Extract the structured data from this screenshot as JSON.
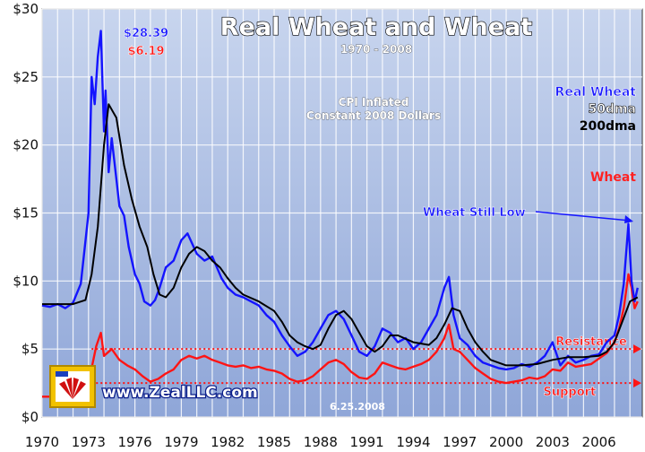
{
  "chart_data": {
    "type": "line",
    "title": "Real Wheat and Wheat",
    "subtitle": "1970 - 2008",
    "note_lines": [
      "CPI Inflated",
      "Constant 2008 Dollars"
    ],
    "ylim": [
      0,
      30
    ],
    "xlim": [
      1970,
      2008.8
    ],
    "y_ticks": [
      0,
      5,
      10,
      15,
      20,
      25,
      30
    ],
    "y_tick_labels": [
      "$0",
      "$5",
      "$10",
      "$15",
      "$20",
      "$25",
      "$30"
    ],
    "x_ticks": [
      1970,
      1973,
      1976,
      1979,
      1982,
      1985,
      1988,
      1991,
      1994,
      1997,
      2000,
      2003,
      2006
    ],
    "x_tick_labels": [
      "1970",
      "1973",
      "1976",
      "1979",
      "1982",
      "1985",
      "1988",
      "1991",
      "1994",
      "1997",
      "2000",
      "2003",
      "2006"
    ],
    "grid": true,
    "legend": {
      "position": "right",
      "entries": [
        {
          "label": "Real Wheat",
          "color": "#1a1aff"
        },
        {
          "label": "50dma",
          "color": "#ffffff"
        },
        {
          "label": "200dma",
          "color": "#000000"
        },
        {
          "label": "Wheat",
          "color": "#ff2222"
        }
      ]
    },
    "series": [
      {
        "name": "Real Wheat",
        "color": "#1414ff",
        "x": [
          1970,
          1970.5,
          1971,
          1971.5,
          1972,
          1972.5,
          1973,
          1973.2,
          1973.4,
          1973.6,
          1973.8,
          1974,
          1974.1,
          1974.3,
          1974.5,
          1974.8,
          1975,
          1975.3,
          1975.6,
          1976,
          1976.3,
          1976.6,
          1977,
          1977.3,
          1977.6,
          1978,
          1978.5,
          1979,
          1979.4,
          1979.8,
          1980,
          1980.5,
          1981,
          1981.3,
          1981.6,
          1982,
          1982.5,
          1983,
          1983.5,
          1984,
          1984.5,
          1985,
          1985.5,
          1986,
          1986.5,
          1987,
          1987.5,
          1988,
          1988.5,
          1989,
          1989.5,
          1990,
          1990.5,
          1991,
          1991.5,
          1992,
          1992.5,
          1993,
          1993.5,
          1994,
          1994.5,
          1995,
          1995.5,
          1996,
          1996.3,
          1996.6,
          1997,
          1997.5,
          1998,
          1998.5,
          1999,
          1999.5,
          2000,
          2000.5,
          2001,
          2001.5,
          2002,
          2002.5,
          2003,
          2003.5,
          2004,
          2004.5,
          2005,
          2005.5,
          2006,
          2006.5,
          2007,
          2007.3,
          2007.6,
          2007.9,
          2008.1,
          2008.3,
          2008.5
        ],
        "y": [
          8.2,
          8.1,
          8.3,
          8.0,
          8.4,
          9.8,
          15.0,
          25.0,
          23.0,
          26.5,
          28.39,
          21.0,
          24.0,
          18.0,
          20.5,
          17.5,
          15.5,
          14.8,
          12.5,
          10.5,
          9.8,
          8.5,
          8.2,
          8.6,
          9.5,
          11.0,
          11.5,
          13.0,
          13.5,
          12.5,
          12.0,
          11.5,
          11.8,
          11.0,
          10.2,
          9.5,
          9.0,
          8.8,
          8.5,
          8.2,
          7.5,
          7.0,
          6.0,
          5.2,
          4.5,
          4.8,
          5.5,
          6.5,
          7.5,
          7.8,
          7.2,
          6.0,
          4.8,
          4.5,
          5.2,
          6.5,
          6.2,
          5.5,
          5.8,
          5.0,
          5.5,
          6.5,
          7.5,
          9.5,
          10.3,
          7.5,
          5.8,
          5.3,
          4.5,
          4.0,
          3.8,
          3.6,
          3.5,
          3.6,
          3.9,
          3.7,
          4.0,
          4.5,
          5.5,
          3.8,
          4.5,
          4.0,
          4.2,
          4.5,
          4.6,
          5.5,
          6.0,
          7.5,
          9.8,
          14.2,
          10.0,
          8.5,
          9.5
        ]
      },
      {
        "name": "200dma",
        "color": "#000000",
        "x": [
          1970,
          1971,
          1972,
          1972.8,
          1973.2,
          1973.6,
          1974,
          1974.3,
          1974.8,
          1975.3,
          1975.8,
          1976.3,
          1976.8,
          1977.2,
          1977.6,
          1978,
          1978.5,
          1979,
          1979.5,
          1980,
          1980.5,
          1981,
          1981.5,
          1982,
          1982.5,
          1983,
          1984,
          1985,
          1985.5,
          1986,
          1986.5,
          1987,
          1987.5,
          1988,
          1988.5,
          1989,
          1989.5,
          1990,
          1990.5,
          1991,
          1991.5,
          1992,
          1992.5,
          1993,
          1994,
          1995,
          1995.5,
          1996,
          1996.5,
          1997,
          1997.5,
          1998,
          1998.5,
          1999,
          2000,
          2001,
          2002,
          2003,
          2004,
          2005,
          2006,
          2006.5,
          2007,
          2007.5,
          2008,
          2008.5
        ],
        "y": [
          8.3,
          8.3,
          8.3,
          8.6,
          10.5,
          14.0,
          20.0,
          23.0,
          22.0,
          18.5,
          16.0,
          14.0,
          12.5,
          10.5,
          9.0,
          8.8,
          9.5,
          11.0,
          12.0,
          12.5,
          12.2,
          11.5,
          11.0,
          10.2,
          9.5,
          9.0,
          8.5,
          7.8,
          7.0,
          6.0,
          5.5,
          5.2,
          5.0,
          5.3,
          6.5,
          7.5,
          7.8,
          7.2,
          6.2,
          5.2,
          4.8,
          5.2,
          6.0,
          6.0,
          5.5,
          5.3,
          5.8,
          6.8,
          8.0,
          7.8,
          6.5,
          5.5,
          4.8,
          4.2,
          3.8,
          3.8,
          3.9,
          4.2,
          4.4,
          4.4,
          4.5,
          4.8,
          5.5,
          7.0,
          8.5,
          8.8
        ]
      },
      {
        "name": "Wheat",
        "color": "#ff1414",
        "x": [
          1970,
          1971,
          1972,
          1972.8,
          1973,
          1973.5,
          1973.8,
          1974,
          1974.5,
          1975,
          1975.5,
          1976,
          1976.5,
          1977,
          1977.5,
          1978,
          1978.5,
          1979,
          1979.5,
          1980,
          1980.5,
          1981,
          1981.5,
          1982,
          1982.5,
          1983,
          1983.5,
          1984,
          1984.5,
          1985,
          1985.5,
          1986,
          1986.5,
          1987,
          1987.5,
          1988,
          1988.5,
          1989,
          1989.5,
          1990,
          1990.5,
          1991,
          1991.5,
          1992,
          1992.5,
          1993,
          1993.5,
          1994,
          1994.5,
          1995,
          1995.5,
          1996,
          1996.3,
          1996.6,
          1997,
          1997.5,
          1998,
          1998.5,
          1999,
          1999.5,
          2000,
          2000.5,
          2001,
          2001.5,
          2002,
          2002.5,
          2003,
          2003.5,
          2004,
          2004.5,
          2005,
          2005.5,
          2006,
          2006.5,
          2007,
          2007.3,
          2007.6,
          2007.9,
          2008.1,
          2008.3,
          2008.5
        ],
        "y": [
          1.5,
          1.5,
          1.6,
          1.7,
          2.5,
          5.2,
          6.19,
          4.5,
          5.0,
          4.2,
          3.8,
          3.5,
          3.0,
          2.6,
          2.8,
          3.2,
          3.5,
          4.2,
          4.5,
          4.3,
          4.5,
          4.2,
          4.0,
          3.8,
          3.7,
          3.8,
          3.6,
          3.7,
          3.5,
          3.4,
          3.2,
          2.8,
          2.6,
          2.7,
          3.0,
          3.5,
          4.0,
          4.2,
          3.9,
          3.3,
          2.9,
          2.8,
          3.2,
          4.0,
          3.8,
          3.6,
          3.5,
          3.7,
          3.9,
          4.2,
          4.8,
          5.8,
          6.8,
          5.0,
          4.8,
          4.2,
          3.6,
          3.2,
          2.8,
          2.6,
          2.5,
          2.6,
          2.7,
          2.9,
          2.8,
          3.0,
          3.5,
          3.4,
          4.0,
          3.7,
          3.8,
          3.9,
          4.3,
          4.7,
          5.5,
          6.5,
          8.0,
          10.5,
          9.5,
          8.0,
          8.5
        ]
      }
    ],
    "reference_lines": [
      {
        "label": "Resistance",
        "y": 5.0,
        "color": "#ff1414"
      },
      {
        "label": "Support",
        "y": 2.5,
        "color": "#ff1414"
      }
    ],
    "annotations": [
      {
        "text": "$28.39",
        "x": 1973.8,
        "y": 28.39,
        "color": "#1414ff"
      },
      {
        "text": "$6.19",
        "x": 1973.8,
        "y": 6.19,
        "color": "#ff1414"
      },
      {
        "text": "Wheat Still Low",
        "x": 2008.1,
        "y": 14.2,
        "color": "#1414ff"
      }
    ]
  },
  "branding": {
    "site": "www.ZealLLC.com",
    "date": "6.25.2008"
  }
}
